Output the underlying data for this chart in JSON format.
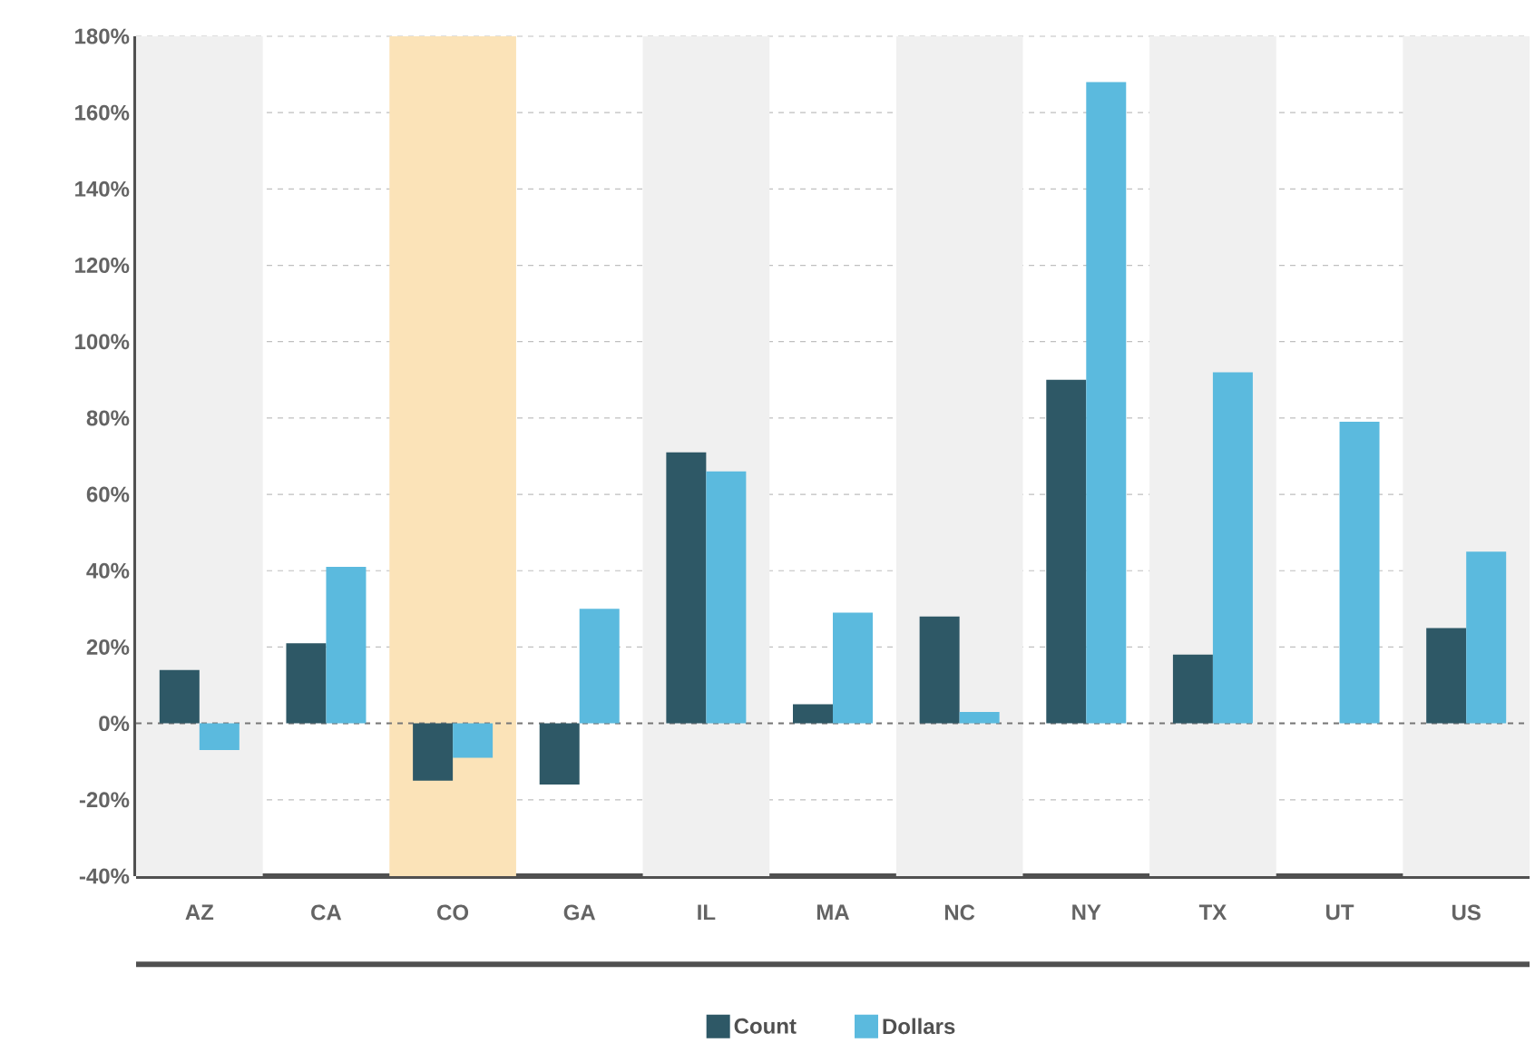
{
  "chart_data": {
    "type": "bar",
    "categories": [
      "AZ",
      "CA",
      "CO",
      "GA",
      "IL",
      "MA",
      "NC",
      "NY",
      "TX",
      "UT",
      "US"
    ],
    "series": [
      {
        "name": "Count",
        "color": "#2e5866",
        "values": [
          14,
          21,
          -15,
          -16,
          71,
          5,
          28,
          90,
          18,
          0,
          25
        ]
      },
      {
        "name": "Dollars",
        "color": "#5bbade",
        "values": [
          -7,
          41,
          -9,
          30,
          66,
          29,
          3,
          168,
          92,
          79,
          45
        ]
      }
    ],
    "ylim": [
      -40,
      180
    ],
    "yticks": [
      {
        "value": -40,
        "label": "-40%"
      },
      {
        "value": -20,
        "label": "-20%"
      },
      {
        "value": 0,
        "label": "0%"
      },
      {
        "value": 20,
        "label": "20%"
      },
      {
        "value": 40,
        "label": "40%"
      },
      {
        "value": 60,
        "label": "60%"
      },
      {
        "value": 80,
        "label": "80%"
      },
      {
        "value": 100,
        "label": "100%"
      },
      {
        "value": 120,
        "label": "120%"
      },
      {
        "value": 140,
        "label": "140%"
      },
      {
        "value": 160,
        "label": "160%"
      },
      {
        "value": 180,
        "label": "180%"
      }
    ],
    "grid": "y",
    "legend": "bottom",
    "ref_lines": [
      {
        "axis": "y",
        "value": 0,
        "line_style": "dashed",
        "color": "#777777"
      }
    ],
    "bands": [
      {
        "axis": "x",
        "from": "AZ",
        "to": "AZ",
        "color": "#f0f0f0"
      },
      {
        "axis": "x",
        "from": "CO",
        "to": "CO",
        "color": "#fbe3b8"
      },
      {
        "axis": "x",
        "from": "IL",
        "to": "IL",
        "color": "#f0f0f0"
      },
      {
        "axis": "x",
        "from": "NC",
        "to": "NC",
        "color": "#f0f0f0"
      },
      {
        "axis": "x",
        "from": "TX",
        "to": "TX",
        "color": "#f0f0f0"
      },
      {
        "axis": "x",
        "from": "US",
        "to": "US",
        "color": "#f0f0f0"
      }
    ]
  }
}
